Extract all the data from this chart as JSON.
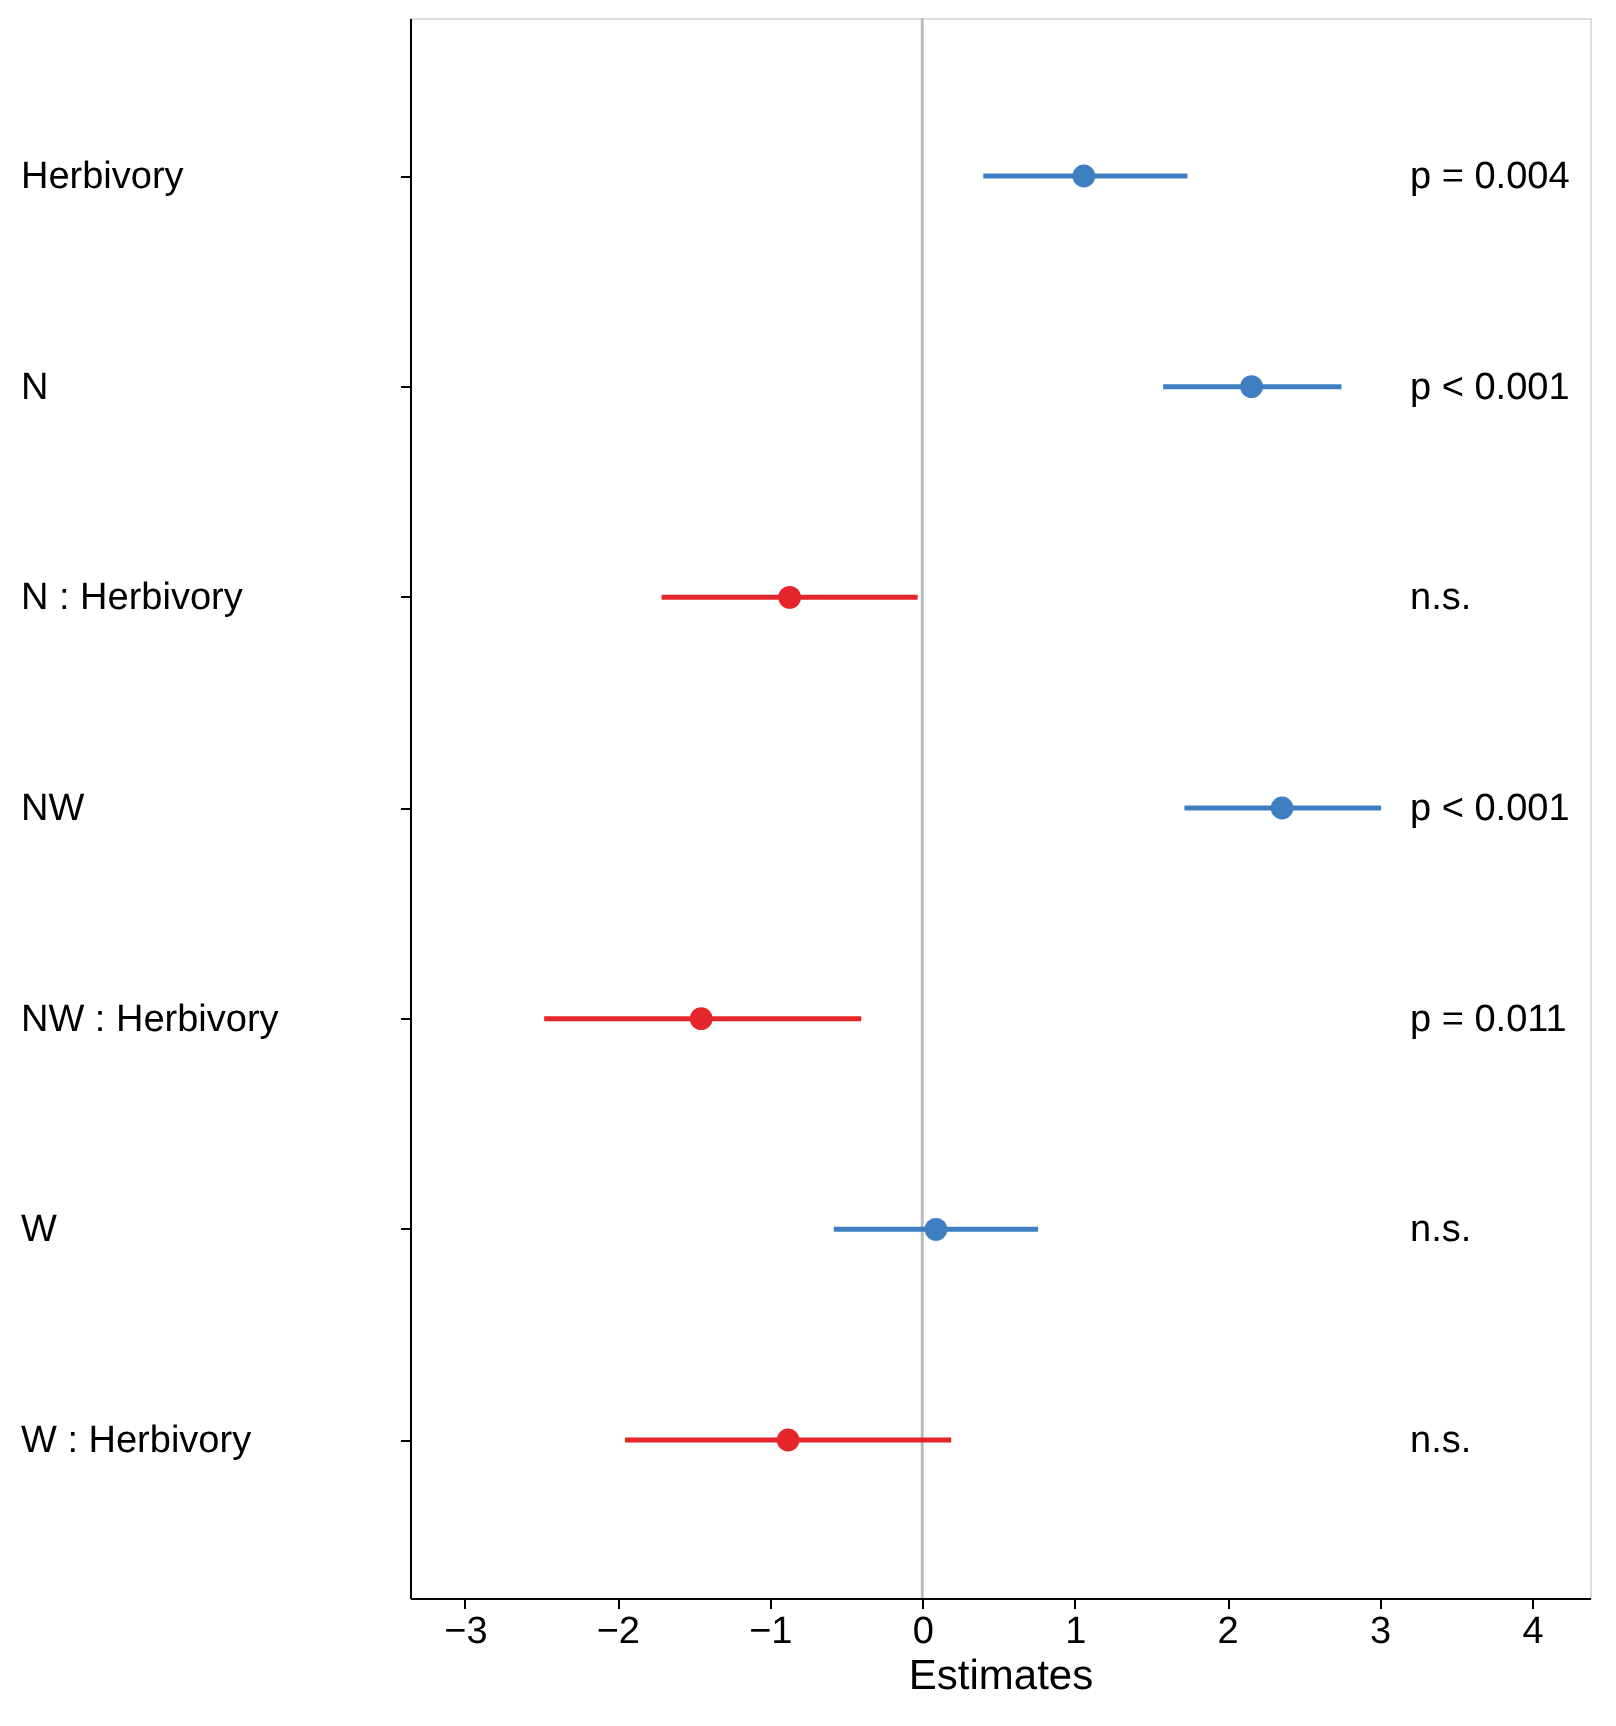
{
  "chart_data": {
    "type": "scatter",
    "orientation": "horizontal",
    "categories": [
      "Herbivory",
      "N",
      "N : Herbivory",
      "NW",
      "NW : Herbivory",
      "W",
      "W : Herbivory"
    ],
    "values": [
      1.06,
      2.16,
      -0.87,
      2.36,
      -1.45,
      0.09,
      -0.88
    ],
    "errors": [
      [
        0.4,
        1.74
      ],
      [
        1.58,
        2.75
      ],
      [
        -1.71,
        -0.03
      ],
      [
        1.72,
        3.01
      ],
      [
        -2.48,
        -0.4
      ],
      [
        -0.58,
        0.76
      ],
      [
        -1.95,
        0.19
      ]
    ],
    "colors": [
      "#3d7fc1",
      "#3d7fc1",
      "#e4262a",
      "#3d7fc1",
      "#e4262a",
      "#3d7fc1",
      "#e4262a"
    ],
    "xlim": [
      -3.36,
      4.38
    ],
    "xticks": [
      -3,
      -2,
      -1,
      0,
      1,
      2,
      3,
      4
    ],
    "xlabel": "Estimates",
    "grid": false,
    "marker": "circle",
    "ref_lines": [
      {
        "axis": "x",
        "value": 0,
        "color": "#bbbbbb"
      }
    ],
    "annotations": [
      "p = 0.004",
      "p < 0.001",
      "n.s.",
      "p < 0.001",
      "p = 0.011",
      "n.s.",
      "n.s."
    ]
  }
}
